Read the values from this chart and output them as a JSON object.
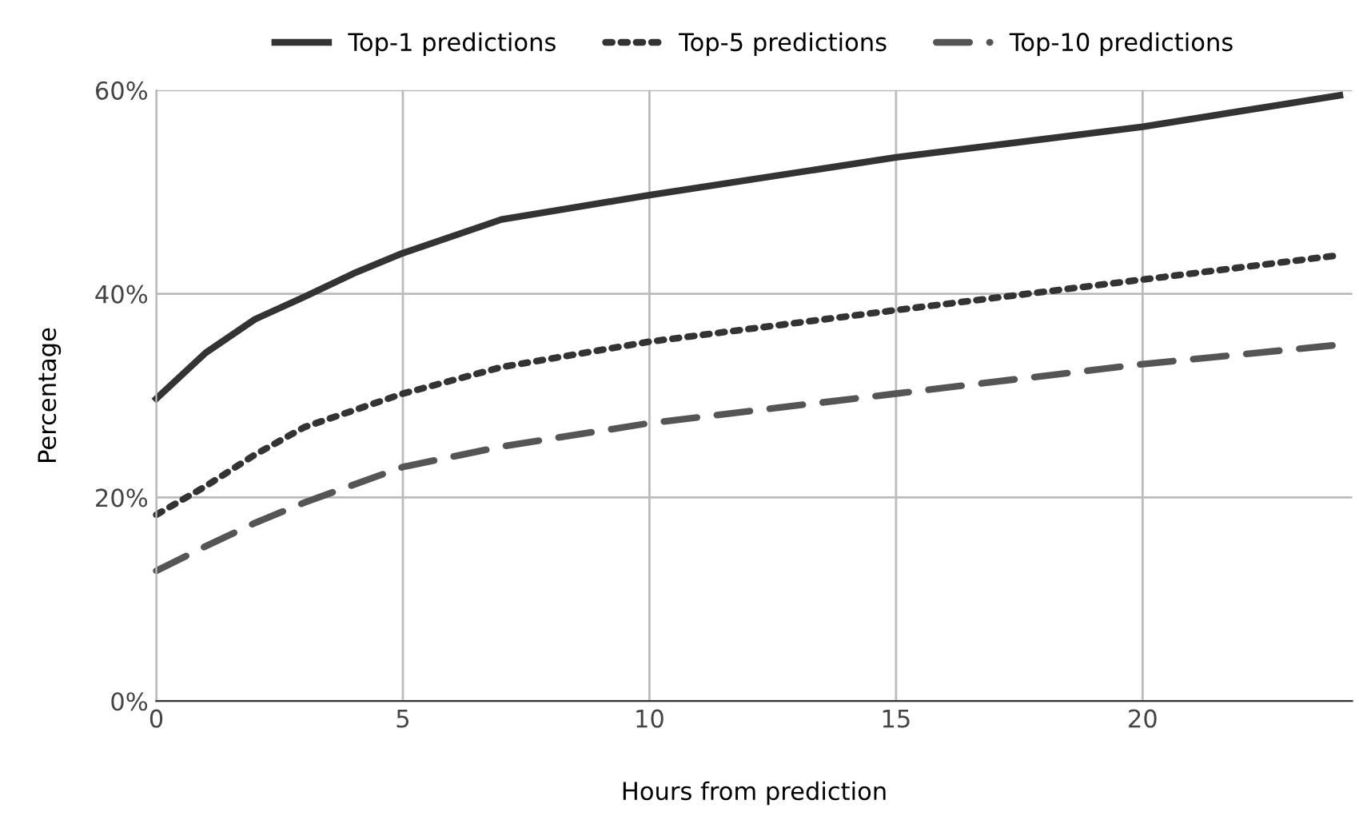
{
  "chart_data": {
    "type": "line",
    "xlabel": "Hours from prediction",
    "ylabel": "Percentage",
    "xlim": [
      0,
      24.25
    ],
    "xticks": [
      0,
      5,
      10,
      15,
      20
    ],
    "ylim": [
      0,
      60
    ],
    "yticks": [
      {
        "value": 0,
        "label": "0%"
      },
      {
        "value": 20,
        "label": "20%"
      },
      {
        "value": 40,
        "label": "40%"
      },
      {
        "value": 60,
        "label": "60%"
      }
    ],
    "grid": true,
    "legend": "top",
    "marker": "none",
    "series": [
      {
        "name": "Top-1 predictions",
        "color": "#333333",
        "line_style": "solid",
        "x": [
          0,
          1,
          2,
          3,
          4,
          5,
          7,
          10,
          15,
          20,
          24
        ],
        "values": [
          29.7,
          34.2,
          37.5,
          39.7,
          42,
          44,
          47.3,
          49.7,
          53.4,
          56.4,
          59.5
        ]
      },
      {
        "name": "Top-5 predictions",
        "color": "#333333",
        "line_style": "dotted",
        "x": [
          0,
          1,
          2,
          3,
          5,
          7,
          10,
          15,
          20,
          24
        ],
        "values": [
          18.3,
          21.1,
          24.2,
          26.9,
          30.2,
          32.8,
          35.3,
          38.4,
          41.4,
          43.8
        ]
      },
      {
        "name": "Top-10 predictions",
        "color": "#555555",
        "line_style": "dashed",
        "x": [
          0,
          1,
          2,
          3,
          5,
          7,
          10,
          15,
          20,
          24
        ],
        "values": [
          12.8,
          15.2,
          17.5,
          19.5,
          23,
          25,
          27.3,
          30.2,
          33.1,
          35
        ]
      }
    ]
  }
}
